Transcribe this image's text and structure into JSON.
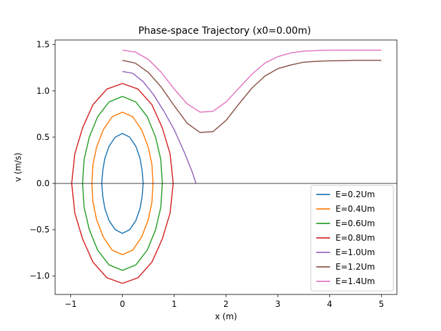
{
  "chart_data": {
    "type": "line",
    "title": "Phase-space Trajectory (x0=0.00m)",
    "xlabel": "x (m)",
    "ylabel": "v (m/s)",
    "xlim": [
      -1.3,
      5.3
    ],
    "ylim": [
      -1.2,
      1.55
    ],
    "xticks": [
      -1,
      0,
      1,
      2,
      3,
      4,
      5
    ],
    "xtick_labels": [
      "−1",
      "0",
      "1",
      "2",
      "3",
      "4",
      "5"
    ],
    "yticks": [
      -1.0,
      -0.5,
      0.0,
      0.5,
      1.0,
      1.5
    ],
    "ytick_labels": [
      "−1.0",
      "−0.5",
      "0.0",
      "0.5",
      "1.0",
      "1.5"
    ],
    "zero_line": 0.0,
    "grid": false,
    "legend_position": "lower-right",
    "series": [
      {
        "name": "E=0.2Um",
        "color": "#1f77b4",
        "closed": true,
        "x": [
          0.0,
          0.14,
          0.26,
          0.34,
          0.38,
          0.4,
          0.38,
          0.34,
          0.26,
          0.14,
          0.0,
          -0.14,
          -0.26,
          -0.34,
          -0.38,
          -0.4,
          -0.38,
          -0.34,
          -0.26,
          -0.14,
          0.0
        ],
        "y": [
          0.54,
          0.5,
          0.4,
          0.27,
          0.14,
          0.0,
          -0.14,
          -0.27,
          -0.4,
          -0.5,
          -0.54,
          -0.5,
          -0.4,
          -0.27,
          -0.14,
          0.0,
          0.14,
          0.27,
          0.4,
          0.5,
          0.54
        ]
      },
      {
        "name": "E=0.4Um",
        "color": "#ff7f0e",
        "closed": true,
        "x": [
          0.0,
          0.2,
          0.37,
          0.5,
          0.57,
          0.59,
          0.57,
          0.5,
          0.37,
          0.2,
          0.0,
          -0.2,
          -0.37,
          -0.5,
          -0.57,
          -0.59,
          -0.57,
          -0.5,
          -0.37,
          -0.2,
          0.0
        ],
        "y": [
          0.77,
          0.72,
          0.58,
          0.39,
          0.2,
          0.0,
          -0.2,
          -0.39,
          -0.58,
          -0.72,
          -0.77,
          -0.72,
          -0.58,
          -0.39,
          -0.2,
          0.0,
          0.2,
          0.39,
          0.58,
          0.72,
          0.77
        ]
      },
      {
        "name": "E=0.6Um",
        "color": "#2ca02c",
        "closed": true,
        "x": [
          0.0,
          0.26,
          0.48,
          0.64,
          0.74,
          0.77,
          0.74,
          0.64,
          0.48,
          0.26,
          0.0,
          -0.26,
          -0.48,
          -0.64,
          -0.74,
          -0.77,
          -0.74,
          -0.64,
          -0.48,
          -0.26,
          0.0
        ],
        "y": [
          0.94,
          0.88,
          0.72,
          0.5,
          0.26,
          0.0,
          -0.26,
          -0.5,
          -0.72,
          -0.88,
          -0.94,
          -0.88,
          -0.72,
          -0.5,
          -0.26,
          0.0,
          0.26,
          0.5,
          0.72,
          0.88,
          0.94
        ]
      },
      {
        "name": "E=0.8Um",
        "color": "#d62728",
        "closed": true,
        "x": [
          0.0,
          0.3,
          0.57,
          0.77,
          0.92,
          0.98,
          0.92,
          0.77,
          0.57,
          0.3,
          0.0,
          -0.3,
          -0.57,
          -0.77,
          -0.92,
          -0.98,
          -0.92,
          -0.77,
          -0.57,
          -0.3,
          0.0
        ],
        "y": [
          1.08,
          1.02,
          0.85,
          0.6,
          0.32,
          0.0,
          -0.32,
          -0.6,
          -0.85,
          -1.02,
          -1.08,
          -1.02,
          -0.85,
          -0.6,
          -0.32,
          0.0,
          0.32,
          0.6,
          0.85,
          1.02,
          1.08
        ]
      },
      {
        "name": "E=1.0Um",
        "color": "#9467bd",
        "closed": false,
        "x": [
          0.0,
          0.2,
          0.4,
          0.6,
          0.8,
          1.0,
          1.2,
          1.35,
          1.42
        ],
        "y": [
          1.21,
          1.19,
          1.1,
          0.96,
          0.78,
          0.58,
          0.33,
          0.12,
          0.0
        ]
      },
      {
        "name": "E=1.2Um",
        "color": "#8c564b",
        "closed": false,
        "x": [
          0.0,
          0.25,
          0.5,
          0.75,
          1.0,
          1.25,
          1.5,
          1.75,
          2.0,
          2.25,
          2.5,
          2.75,
          3.0,
          3.25,
          3.5,
          3.75,
          4.0,
          4.5,
          5.0
        ],
        "y": [
          1.33,
          1.3,
          1.2,
          1.04,
          0.84,
          0.65,
          0.55,
          0.56,
          0.68,
          0.86,
          1.03,
          1.16,
          1.24,
          1.28,
          1.31,
          1.32,
          1.325,
          1.33,
          1.33
        ]
      },
      {
        "name": "E=1.4Um",
        "color": "#e377c2",
        "closed": false,
        "x": [
          0.0,
          0.25,
          0.5,
          0.75,
          1.0,
          1.25,
          1.5,
          1.75,
          2.0,
          2.25,
          2.5,
          2.75,
          3.0,
          3.25,
          3.5,
          3.75,
          4.0,
          4.5,
          5.0
        ],
        "y": [
          1.44,
          1.42,
          1.34,
          1.2,
          1.02,
          0.86,
          0.77,
          0.78,
          0.88,
          1.03,
          1.18,
          1.3,
          1.37,
          1.41,
          1.43,
          1.435,
          1.44,
          1.44,
          1.44
        ]
      }
    ]
  }
}
